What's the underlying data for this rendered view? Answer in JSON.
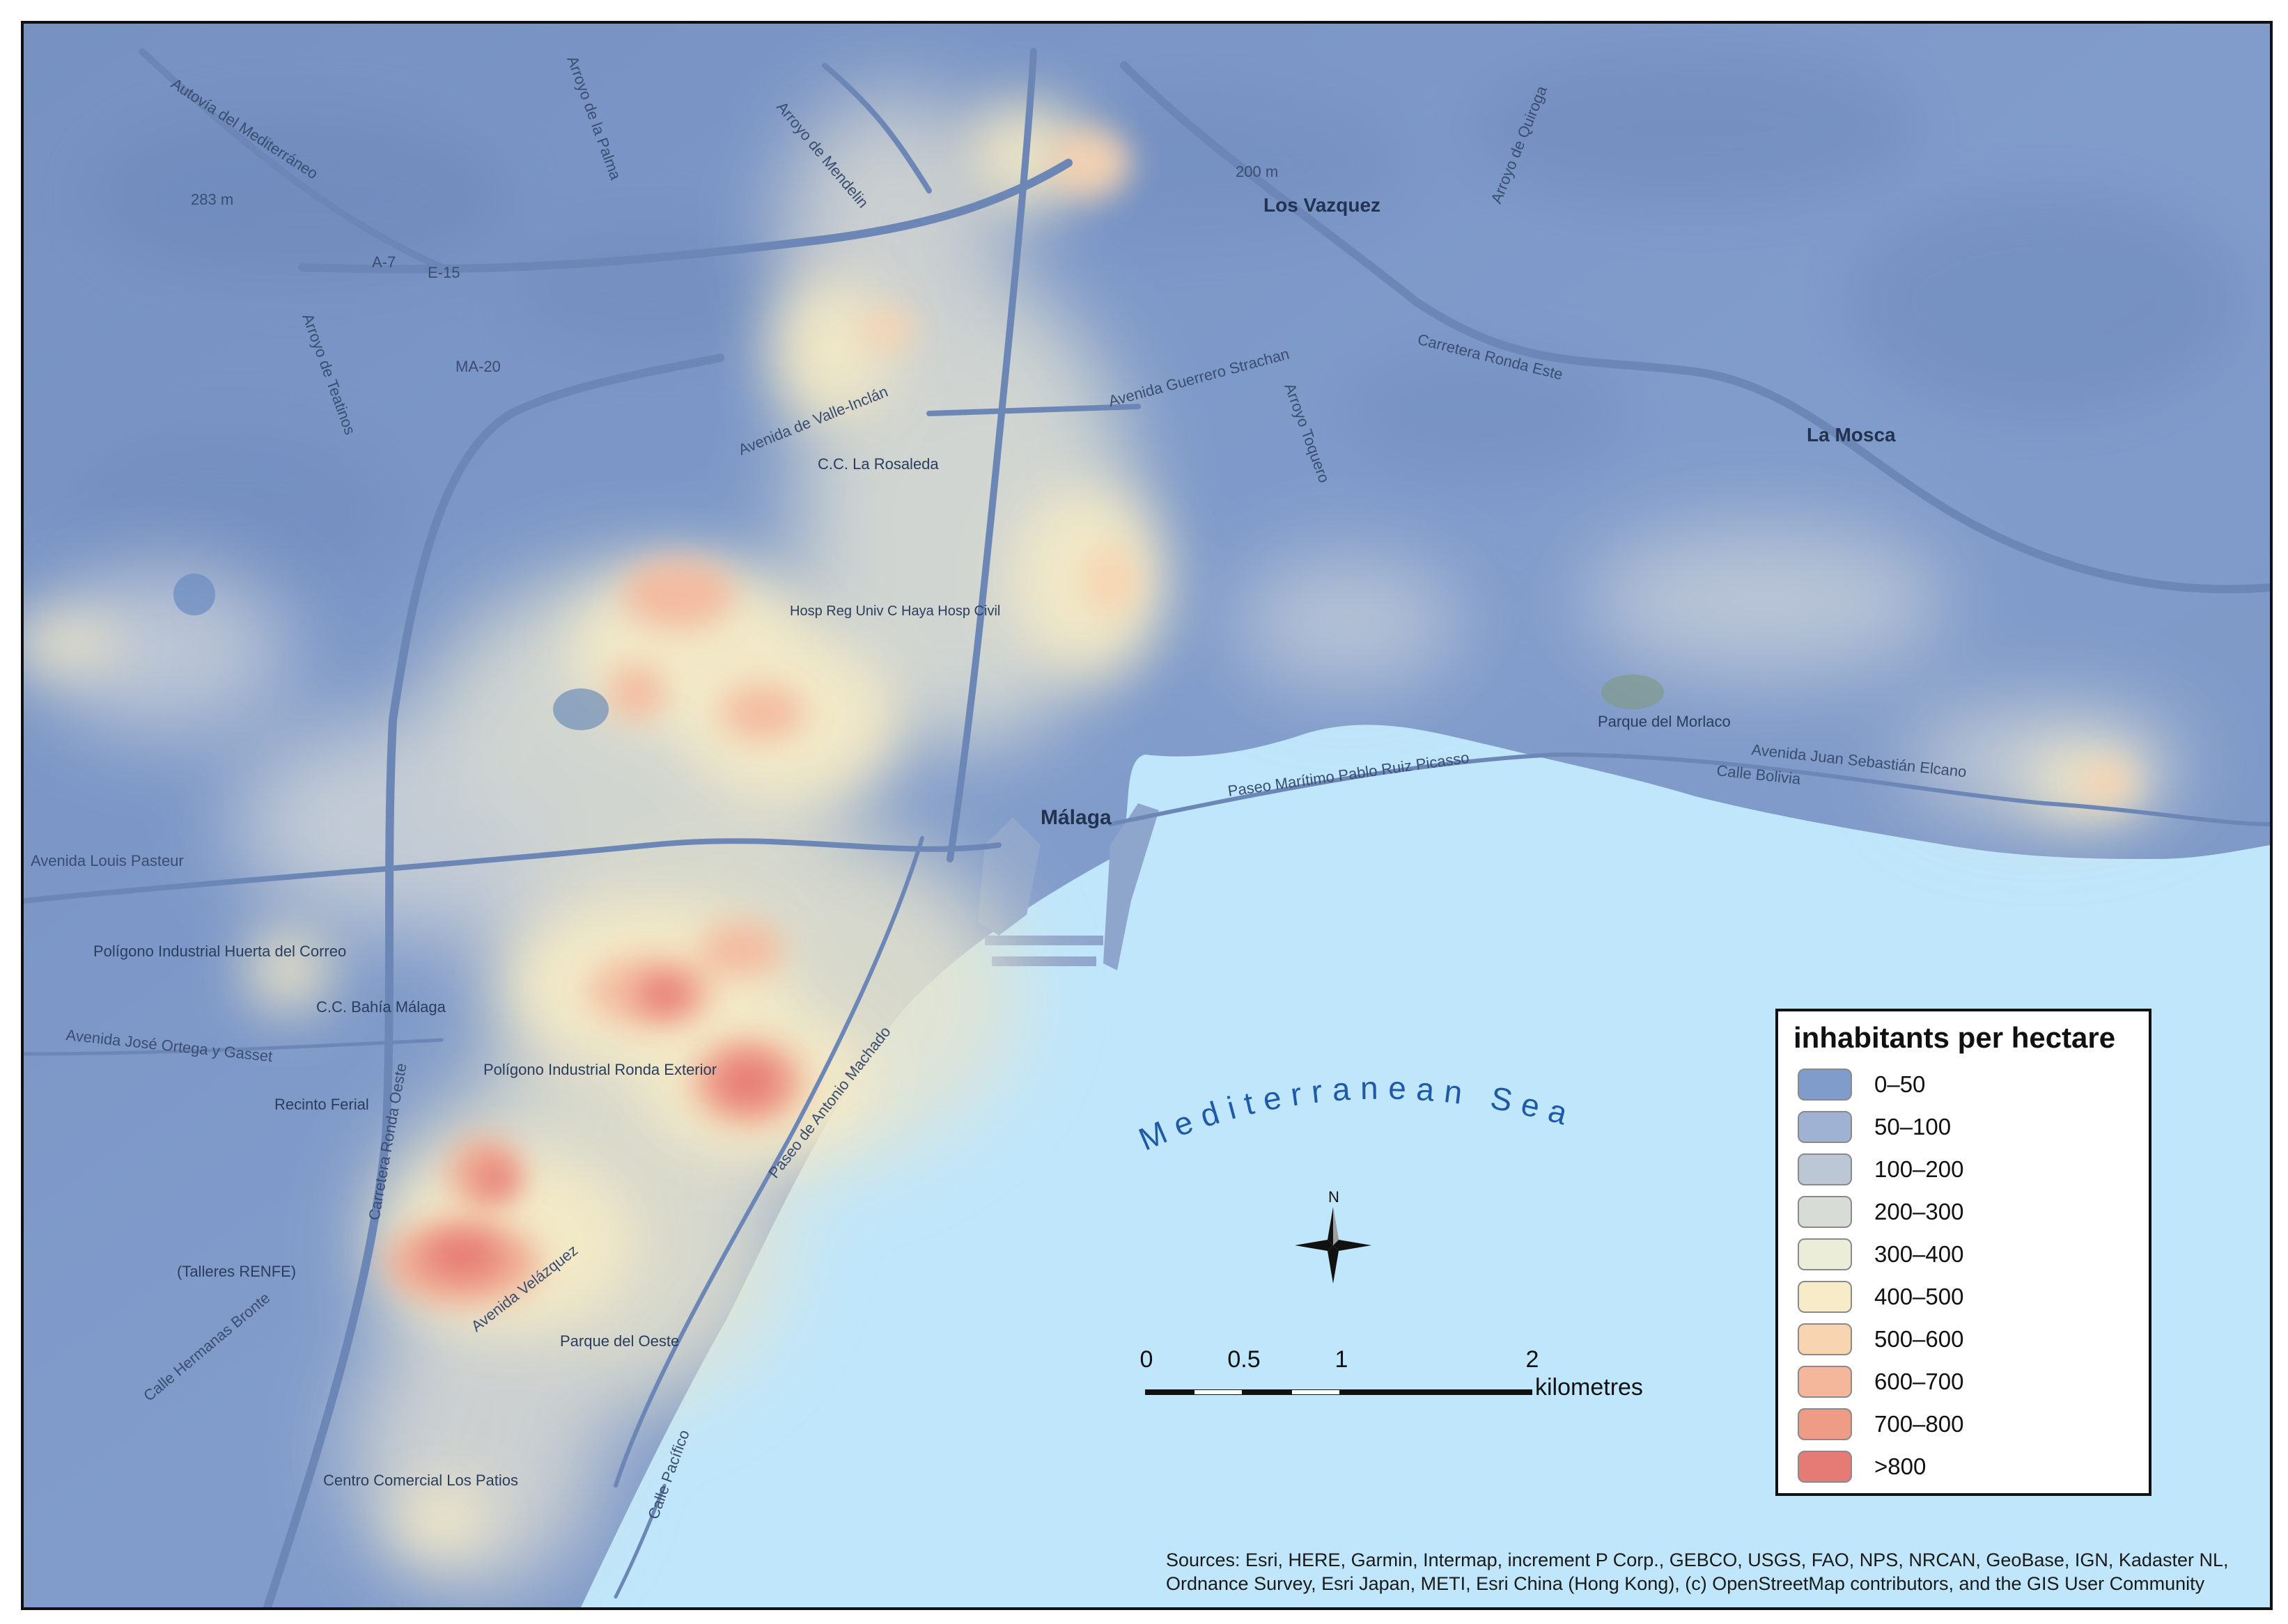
{
  "legend": {
    "title": "inhabitants per hectare",
    "classes": [
      {
        "label": "0–50",
        "color": "#7f9ccb"
      },
      {
        "label": "50–100",
        "color": "#9fb2d3"
      },
      {
        "label": "100–200",
        "color": "#bcc7d6"
      },
      {
        "label": "200–300",
        "color": "#d7dcd6"
      },
      {
        "label": "300–400",
        "color": "#ecedd8"
      },
      {
        "label": "400–500",
        "color": "#f7ecc7"
      },
      {
        "label": "500–600",
        "color": "#f8d4b1"
      },
      {
        "label": "600–700",
        "color": "#f4b79c"
      },
      {
        "label": "700–800",
        "color": "#ee9c86"
      },
      {
        "label": ">800",
        "color": "#e67a74"
      }
    ]
  },
  "sea": {
    "label": "Mediterranean Sea",
    "color": "#bfe6fb",
    "label_color": "#1e5aa8"
  },
  "north_arrow": {
    "label": "N"
  },
  "scale_bar": {
    "ticks": [
      "0",
      "0.5",
      "1",
      "2"
    ],
    "unit": "kilometres"
  },
  "places": {
    "malaga": "Málaga",
    "los_vazquez": "Los Vazquez",
    "la_mosca": "La Mosca",
    "recinto_ferial": "Recinto Ferial",
    "cc_rosaleda": "C.C. La Rosaleda",
    "cc_bahia": "C.C. Bahía Málaga",
    "poligono_huerta": "Polígono Industrial Huerta del Correo",
    "poligono_ronda": "Polígono Industrial Ronda Exterior",
    "parque_morlaco": "Parque del Morlaco",
    "talleres_renfe": "(Talleres RENFE)",
    "centro_patios": "Centro Comercial Los Patios",
    "parque_oeste": "Parque del Oeste",
    "hosp": "Hosp Reg Univ C Haya Hosp Civil"
  },
  "roads": {
    "autovia": "Autovía del Mediterráneo",
    "a7": "A-7",
    "e15": "E-15",
    "ma20": "MA-20",
    "valle_inclan": "Avenida de Valle-Inclán",
    "guerrero": "Avenida Guerrero Strachan",
    "ronda_este": "Carretera Ronda Este",
    "picasso": "Paseo Marítimo Pablo Ruiz Picasso",
    "sebastian": "Avenida Juan Sebastián Elcano",
    "bolivia": "Calle Bolivia",
    "antonio_machado": "Paseo de Antonio Machado",
    "velazquez": "Avenida Velázquez",
    "ortega": "Avenida José Ortega y Gasset",
    "pacifico": "Calle Pacífico",
    "louis_pasteur": "Avenida Louis Pasteur",
    "carretera_ronda_oeste": "Carretera Ronda Oeste",
    "brenan": "Calle Hermanas Bronte",
    "arroyo_palma": "Arroyo de la Palma",
    "arroyo_mendelin": "Arroyo de Mendelin",
    "arroyo_quintana": "Arroyo de Quiroga",
    "arroyo_toquero": "Arroyo Toquero",
    "arroyo_teatinos": "Arroyo de Teatinos",
    "elev_283": "283 m",
    "elev_200": "200 m"
  },
  "sources": "Sources: Esri, HERE, Garmin, Intermap, increment P Corp., GEBCO, USGS, FAO, NPS, NRCAN, GeoBase, IGN, Kadaster NL, Ordnance Survey, Esri Japan, METI, Esri China (Hong Kong), (c) OpenStreetMap contributors, and the GIS User Community"
}
